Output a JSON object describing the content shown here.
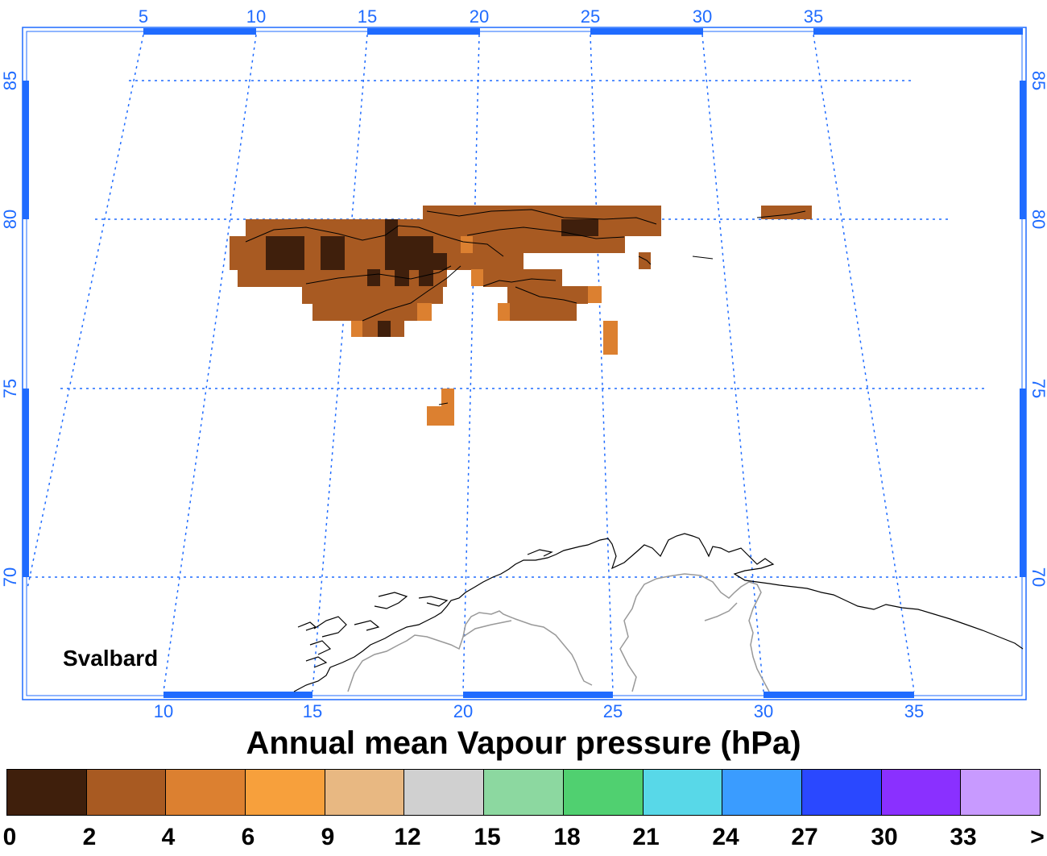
{
  "title": "Annual mean Vapour pressure (hPa)",
  "region_label": "Svalbard",
  "map": {
    "top_lon_ticks": [
      "5",
      "10",
      "15",
      "20",
      "25",
      "30",
      "35"
    ],
    "bottom_lon_ticks": [
      "10",
      "15",
      "20",
      "25",
      "30",
      "35"
    ],
    "lat_ticks": [
      "85",
      "80",
      "75",
      "70"
    ],
    "axis_color": "#1f6bff",
    "coast_color": "#000000",
    "border_color": "#999999"
  },
  "legend": {
    "colors": [
      "#3f1f0c",
      "#a85a22",
      "#dc8030",
      "#f7a03c",
      "#e8b882",
      "#d0d0d0",
      "#8cd8a0",
      "#50d070",
      "#58d8e8",
      "#3a9cff",
      "#2a48ff",
      "#8a30ff",
      "#c89aff"
    ],
    "labels": [
      "0",
      "2",
      "4",
      "6",
      "9",
      "12",
      "15",
      "18",
      "21",
      "24",
      "27",
      "30",
      "33",
      ">"
    ]
  },
  "data_classes": {
    "class_0_2": "#3f1f0c",
    "class_2_4": "#a85a22",
    "class_4_6": "#dc8030"
  }
}
